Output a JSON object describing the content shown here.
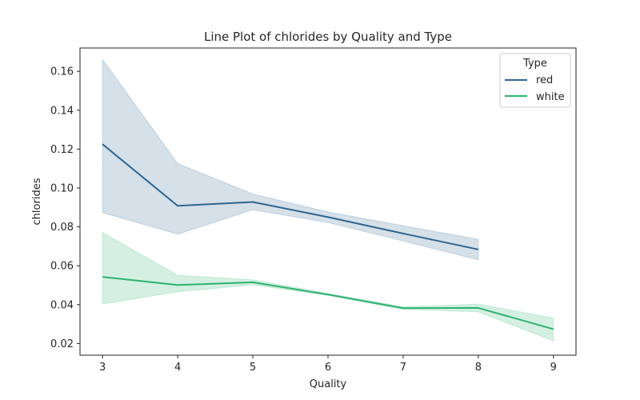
{
  "chart_data": {
    "type": "line",
    "title": "Line Plot of chlorides by Quality and Type",
    "xlabel": "Quality",
    "ylabel": "chlorides",
    "xlim": [
      2.7,
      9.3
    ],
    "ylim": [
      0.014,
      0.172
    ],
    "xticks": [
      3,
      4,
      5,
      6,
      7,
      8,
      9
    ],
    "yticks": [
      0.02,
      0.04,
      0.06,
      0.08,
      0.1,
      0.12,
      0.14,
      0.16
    ],
    "ytick_labels": [
      "0.02",
      "0.04",
      "0.06",
      "0.08",
      "0.10",
      "0.12",
      "0.14",
      "0.16"
    ],
    "grid": false,
    "legend": {
      "title": "Type",
      "placement": "top-right"
    },
    "series": [
      {
        "name": "red",
        "color": "#2f6690",
        "x": [
          3,
          4,
          5,
          6,
          7,
          8
        ],
        "y": [
          0.1225,
          0.0908,
          0.0928,
          0.085,
          0.0766,
          0.0684
        ],
        "ci_low": [
          0.0873,
          0.0762,
          0.0888,
          0.0822,
          0.0727,
          0.063
        ],
        "ci_high": [
          0.1661,
          0.1126,
          0.0969,
          0.0877,
          0.0806,
          0.0736
        ]
      },
      {
        "name": "white",
        "color": "#2db370",
        "x": [
          3,
          4,
          5,
          6,
          7,
          8,
          9
        ],
        "y": [
          0.0543,
          0.0501,
          0.0515,
          0.0452,
          0.0382,
          0.0383,
          0.0274
        ],
        "ci_low": [
          0.0403,
          0.0466,
          0.0502,
          0.0447,
          0.0376,
          0.0363,
          0.0213
        ],
        "ci_high": [
          0.0771,
          0.0551,
          0.0528,
          0.0458,
          0.0389,
          0.0403,
          0.0331
        ]
      }
    ]
  }
}
